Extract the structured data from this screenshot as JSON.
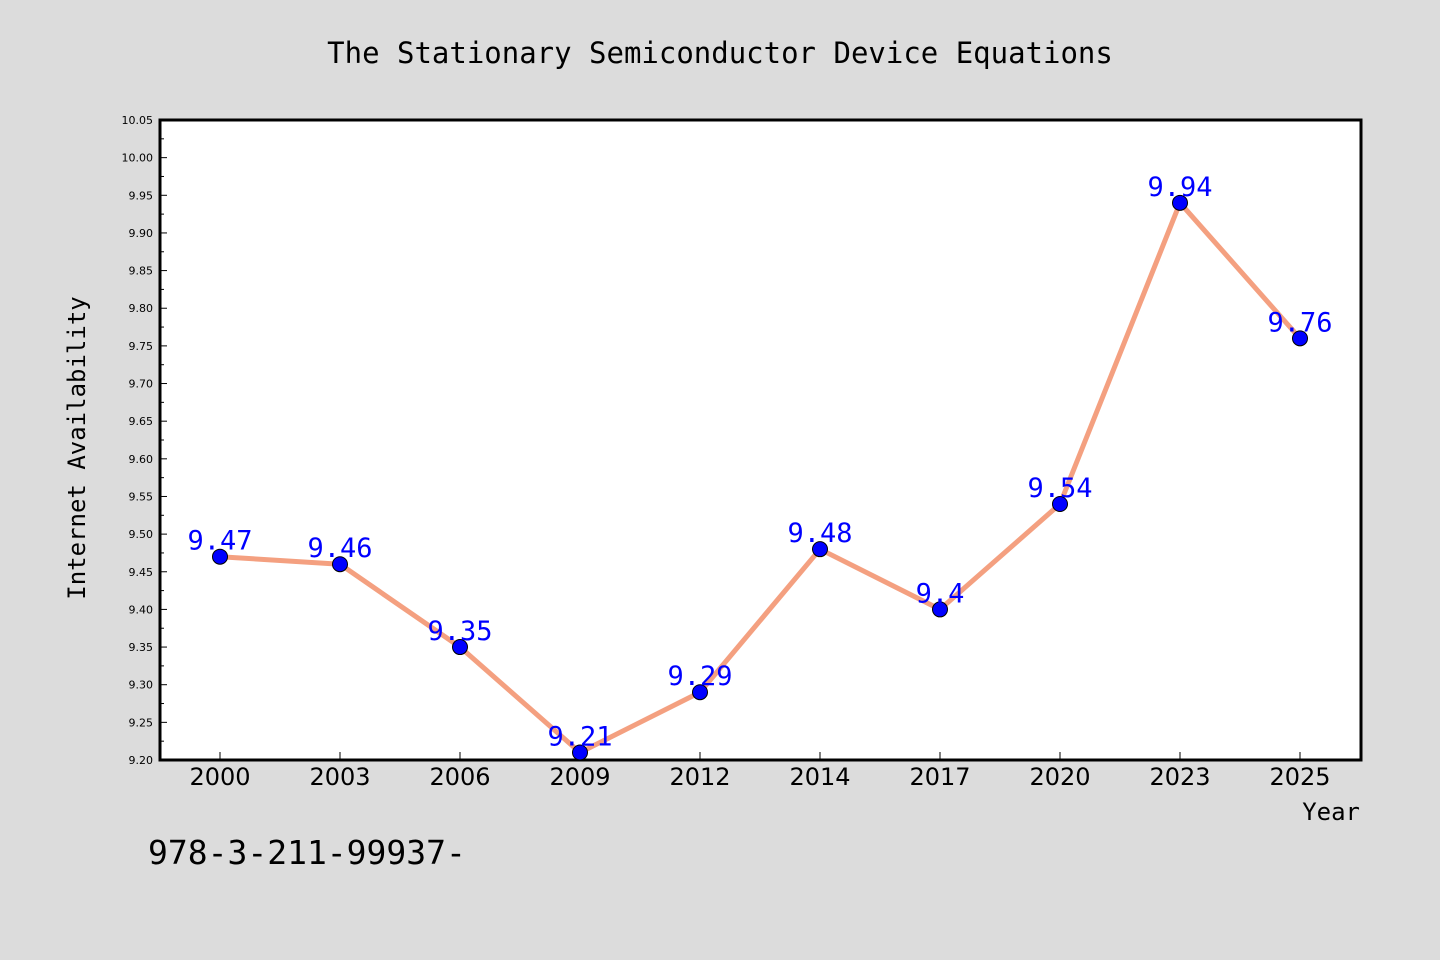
{
  "chart_data": {
    "type": "line",
    "title": "The Stationary Semiconductor Device Equations",
    "xlabel": "Year",
    "ylabel": "Internet Availability",
    "categories": [
      "2000",
      "2003",
      "2006",
      "2009",
      "2012",
      "2014",
      "2017",
      "2020",
      "2023",
      "2025"
    ],
    "series": [
      {
        "values": [
          9.47,
          9.46,
          9.35,
          9.21,
          9.29,
          9.48,
          9.4,
          9.54,
          9.94,
          9.76
        ]
      }
    ],
    "data_labels": [
      "9.47",
      "9.46",
      "9.35",
      "9.21",
      "9.29",
      "9.48",
      "9.4",
      "9.54",
      "9.94",
      "9.76"
    ],
    "ylim": [
      9.2,
      10.05
    ],
    "yticks": [
      "9.20",
      "9.25",
      "9.30",
      "9.35",
      "9.40",
      "9.45",
      "9.50",
      "9.55",
      "9.60",
      "9.65",
      "9.70",
      "9.75",
      "9.80",
      "9.85",
      "9.90",
      "9.95",
      "10.00",
      "10.05"
    ],
    "grid": false,
    "line_color": "#f4a080",
    "marker_color": "#0000ff",
    "label_color": "#0000ff",
    "annotation": "978-3-211-99937-"
  }
}
